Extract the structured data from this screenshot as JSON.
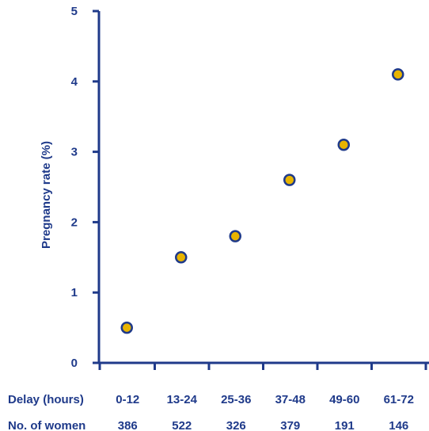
{
  "chart_data": {
    "type": "scatter",
    "title": "",
    "xlabel": "Delay (hours)",
    "ylabel": "Pregnancy rate (%)",
    "ylim": [
      0,
      5
    ],
    "yticks": [
      "0",
      "1",
      "2",
      "3",
      "4",
      "5"
    ],
    "categories": [
      "0-12",
      "13-24",
      "25-36",
      "37-48",
      "49-60",
      "61-72"
    ],
    "values": [
      0.5,
      1.5,
      1.8,
      2.6,
      3.1,
      4.1
    ],
    "women_row_label": "No. of women",
    "women_counts": [
      "386",
      "522",
      "326",
      "379",
      "191",
      "146"
    ],
    "grid": false,
    "legend": "none",
    "colors": {
      "axis": "#1f3a8a",
      "marker_fill": "#e8b400",
      "marker_stroke": "#1f3a8a"
    }
  }
}
